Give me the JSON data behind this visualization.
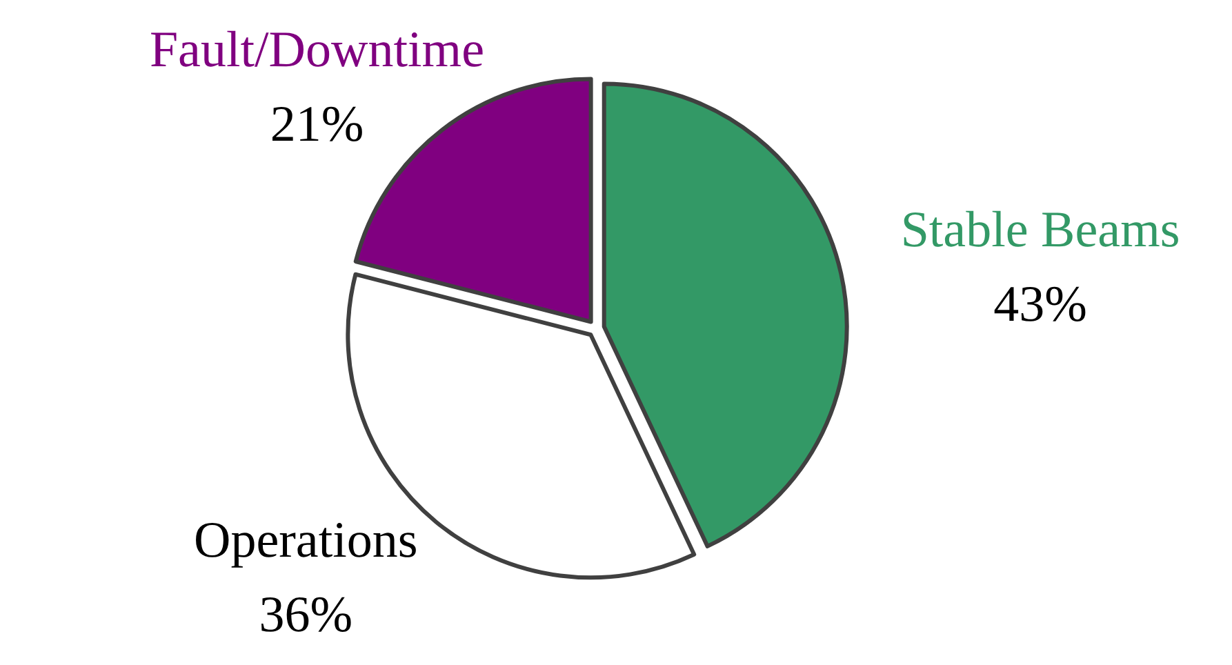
{
  "chart_data": {
    "type": "pie",
    "categories": [
      "Stable Beams",
      "Operations",
      "Fault/Downtime"
    ],
    "values": [
      43,
      36,
      21
    ],
    "colors": [
      "#339966",
      "#ffffff",
      "#800080"
    ],
    "value_labels": [
      "43%",
      "36%",
      "21%"
    ]
  }
}
